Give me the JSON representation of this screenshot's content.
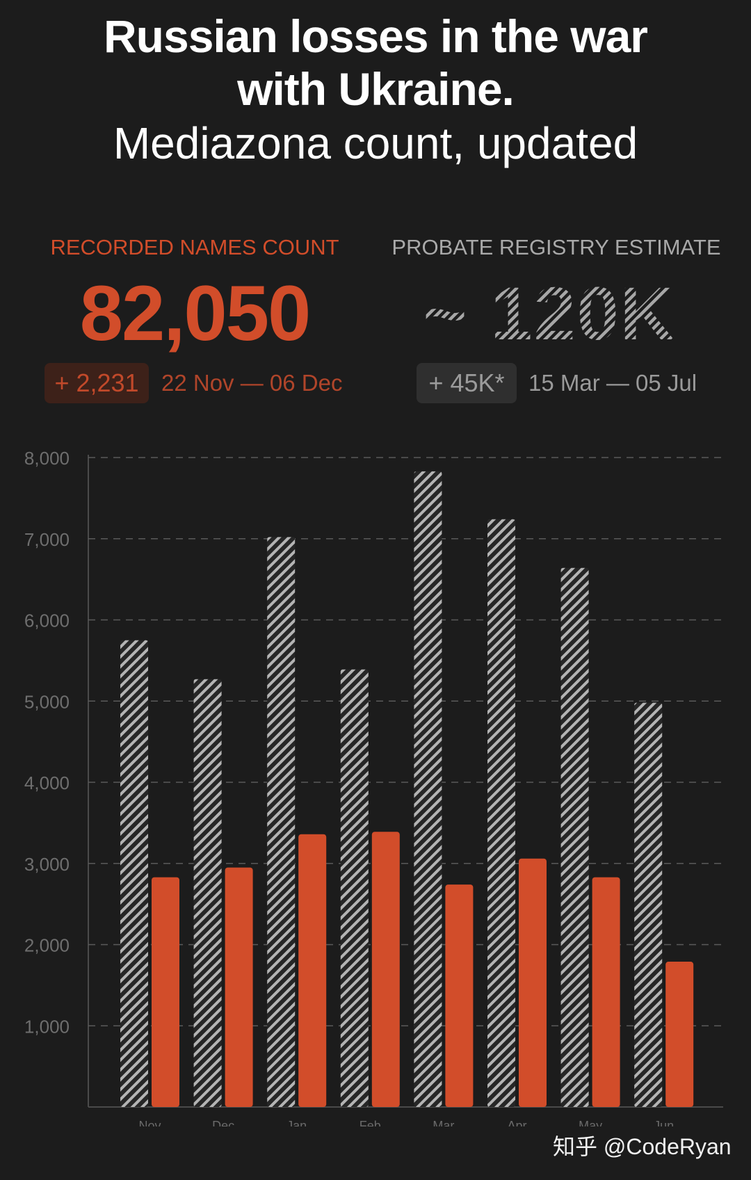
{
  "header": {
    "title_line1": "Russian losses in the war",
    "title_line2": "with Ukraine.",
    "subtitle": "Mediazona count, updated"
  },
  "recorded": {
    "label": "RECORDED NAMES COUNT",
    "value": "82,050",
    "delta": "+ 2,231",
    "period": "22 Nov — 06 Dec"
  },
  "probate": {
    "label": "PROBATE REGISTRY ESTIMATE",
    "value": "~ 120K",
    "delta": "+ 45K*",
    "period": "15 Mar — 05 Jul"
  },
  "watermark": "知乎 @CodeRyan",
  "colors": {
    "background": "#1c1c1c",
    "recorded": "#d24d2a",
    "probate_hatch": "#b4b4b4",
    "grid": "#5a5a5a",
    "tick_text": "#6e6e6e"
  },
  "chart_data": {
    "type": "bar",
    "categories": [
      "Nov",
      "Dec",
      "Jan",
      "Feb",
      "Mar",
      "Apr",
      "May",
      "Jun"
    ],
    "ylim": [
      0,
      8000
    ],
    "yticks": [
      "1,000",
      "2,000",
      "3,000",
      "4,000",
      "5,000",
      "6,000",
      "7,000",
      "8,000"
    ],
    "ytick_values": [
      1000,
      2000,
      3000,
      4000,
      5000,
      6000,
      7000,
      8000
    ],
    "grid": true,
    "series": [
      {
        "style": "hatched",
        "color": "#b4b4b4",
        "values": [
          5750,
          5270,
          7020,
          5390,
          7830,
          7240,
          6640,
          4980
        ]
      },
      {
        "style": "solid",
        "color": "#d24d2a",
        "values": [
          2830,
          2950,
          3360,
          3390,
          2740,
          3060,
          2830,
          1790
        ]
      }
    ]
  }
}
